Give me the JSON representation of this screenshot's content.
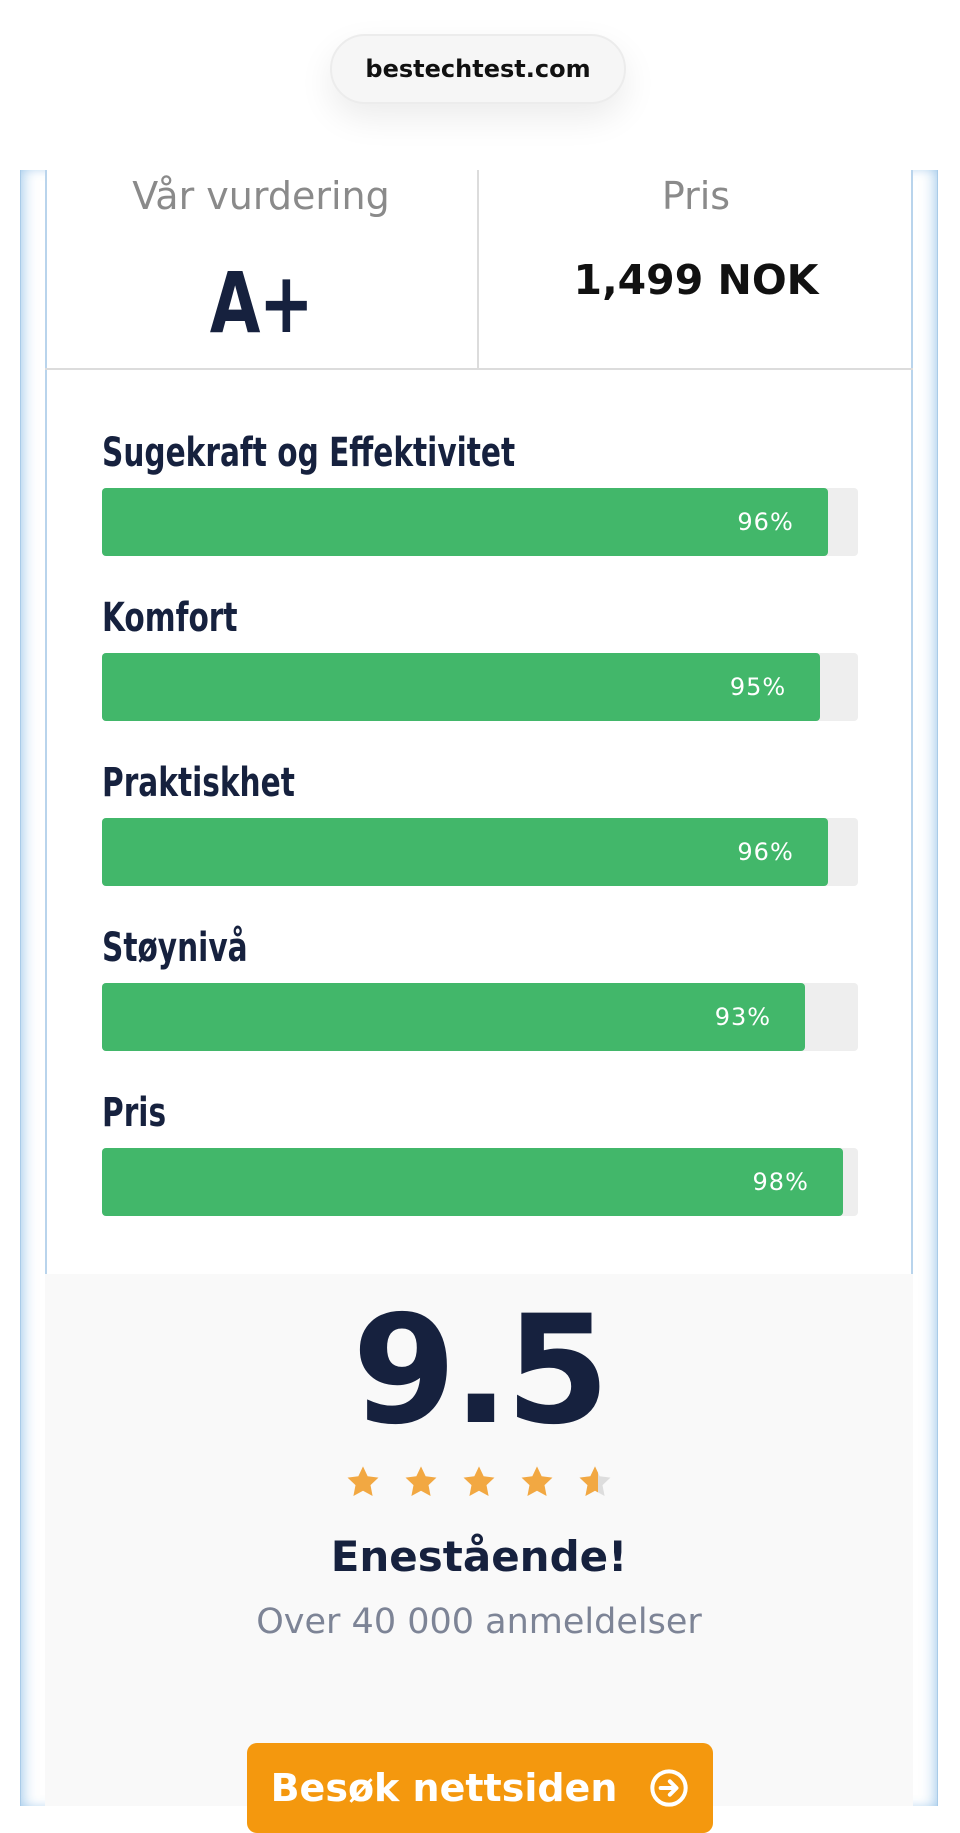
{
  "browser": {
    "url": "bestechtest.com"
  },
  "rating_header": {
    "rating_label": "Vår vurdering",
    "rating_value": "A+",
    "price_label": "Pris",
    "price_value": "1,499 NOK"
  },
  "scores": [
    {
      "label": "Sugekraft og Effektivitet",
      "percent": 96,
      "display": "96%"
    },
    {
      "label": "Komfort",
      "percent": 95,
      "display": "95%"
    },
    {
      "label": "Praktiskhet",
      "percent": 96,
      "display": "96%"
    },
    {
      "label": "Støynivå",
      "percent": 93,
      "display": "93%"
    },
    {
      "label": "Pris",
      "percent": 98,
      "display": "98%"
    }
  ],
  "summary": {
    "score": "9.5",
    "stars": 4.5,
    "verdict": "Enestående!",
    "reviews": "Over 40 000 anmeldelser"
  },
  "cta": {
    "label": "Besøk nettsiden",
    "icon": "arrow-right-circle-icon"
  },
  "colors": {
    "bar_fill": "#42b76a",
    "bar_track": "#eeeeee",
    "navy": "#16213e",
    "cta": "#f4980e",
    "star": "#f2a842"
  }
}
